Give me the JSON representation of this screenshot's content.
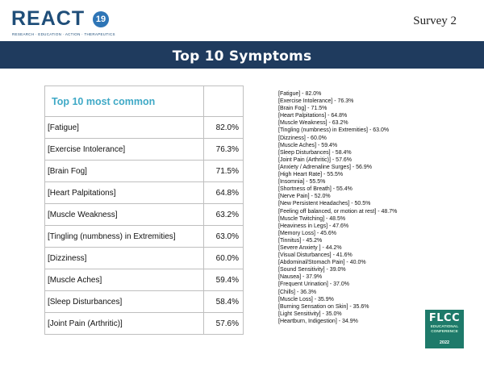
{
  "header": {
    "logo_text": "REACT",
    "logo_number": "19",
    "logo_tagline": "RESEARCH · EDUCATION · ACTION · THERAPEUTICS",
    "survey_label": "Survey 2"
  },
  "title": "Top 10 Symptoms",
  "table": {
    "heading": "Top 10 most common",
    "rows": [
      {
        "name": "[Fatigue]",
        "value": "82.0%"
      },
      {
        "name": "[Exercise Intolerance]",
        "value": "76.3%"
      },
      {
        "name": "[Brain Fog]",
        "value": "71.5%"
      },
      {
        "name": "[Heart Palpitations]",
        "value": "64.8%"
      },
      {
        "name": "[Muscle Weakness]",
        "value": "63.2%"
      },
      {
        "name": "[Tingling (numbness) in Extremities]",
        "value": "63.0%"
      },
      {
        "name": "[Dizziness]",
        "value": "60.0%"
      },
      {
        "name": "[Muscle Aches]",
        "value": "59.4%"
      },
      {
        "name": "[Sleep Disturbances]",
        "value": "58.4%"
      },
      {
        "name": "[Joint Pain (Arthritic)]",
        "value": "57.6%"
      }
    ]
  },
  "symptom_list": [
    "[Fatigue] - 82.0%",
    "[Exercise Intolerance] - 76.3%",
    "[Brain Fog] - 71.5%",
    "[Heart Palpitations] - 64.8%",
    "[Muscle Weakness] - 63.2%",
    "[Tingling (numbness) in Extremities] - 63.0%",
    "[Dizziness] - 60.0%",
    "[Muscle Aches] - 59.4%",
    "[Sleep Disturbances] - 58.4%",
    "[Joint Pain (Arthritic)] - 57.6%",
    "[Anxiety / Adrenaline Surges] - 56.9%",
    "[High Heart Rate] - 55.5%",
    "[Insomnia] - 55.5%",
    "[Shortness of Breath] - 55.4%",
    "[Nerve Pain] - 52.0%",
    "[New Persistent Headaches] - 50.5%",
    "[Feeling off balanced, or motion at rest] - 48.7%",
    "[Muscle Twitching] - 48.5%",
    "[Heaviness in Legs] - 47.6%",
    "[Memory Loss] - 45.6%",
    "[Tinnitus] - 45.2%",
    "[Severe Anxiety ] - 44.2%",
    "[Visual Disturbances] - 41.6%",
    "[Abdominal/Stomach Pain] - 40.0%",
    "[Sound Sensitivity] - 39.0%",
    "[Nausea] - 37.9%",
    "[Frequent Urination] - 37.0%",
    "[Chills] - 36.3%",
    "[Muscle Loss] - 35.9%",
    "[Burning Sensation on Skin] - 35.6%",
    "[Light Sensitivity] - 35.0%",
    "[Heartburn, Indigestion] - 34.9%"
  ],
  "conference_badge": {
    "line1": "FLCC",
    "line2": "EDUCATIONAL",
    "line3": "CONFERENCE",
    "year": "2022",
    "color": "#1e7a6a"
  },
  "colors": {
    "title_bar": "#1f3b5e",
    "brand": "#1f4e79",
    "table_heading": "#3fa9c6"
  }
}
